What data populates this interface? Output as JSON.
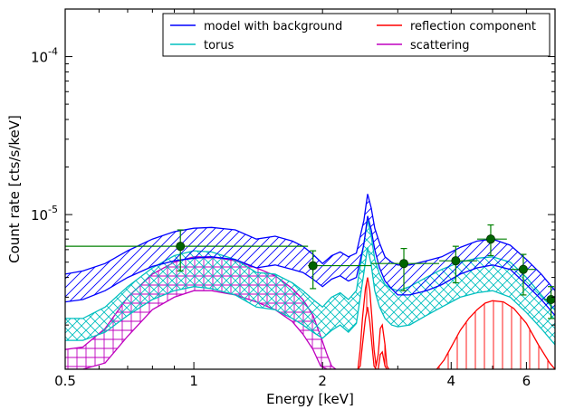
{
  "chart_data": {
    "type": "line",
    "xlabel": "Energy [keV]",
    "ylabel": "Count rate [cts/s/keV]",
    "xscale": "log",
    "yscale": "log",
    "xlim": [
      0.5,
      7.0
    ],
    "ylim": [
      1.05e-06,
      0.0002
    ],
    "x_ticks": [
      {
        "value": 0.5,
        "label": "0.5"
      },
      {
        "value": 1,
        "label": "1"
      },
      {
        "value": 2,
        "label": "2"
      },
      {
        "value": 4,
        "label": "4"
      },
      {
        "value": 6,
        "label": "6"
      }
    ],
    "y_ticks": [
      {
        "value": 1e-05,
        "base": "10",
        "exp": "-5"
      },
      {
        "value": 0.0001,
        "base": "10",
        "exp": "-4"
      }
    ],
    "legend": {
      "placement": "top-right",
      "entries": [
        {
          "label": "model with background",
          "color": "#0000ff"
        },
        {
          "label": "reflection component",
          "color": "#ff0000"
        },
        {
          "label": "torus",
          "color": "#00bfbf"
        },
        {
          "label": "scattering",
          "color": "#bf00bf"
        }
      ]
    },
    "series": [
      {
        "name": "model with background",
        "color": "#0000ff",
        "hatch": "diagonal",
        "x": [
          0.5,
          0.55,
          0.62,
          0.7,
          0.8,
          0.9,
          1.0,
          1.1,
          1.25,
          1.4,
          1.55,
          1.7,
          1.8,
          1.9,
          2.0,
          2.1,
          2.2,
          2.3,
          2.4,
          2.5,
          2.55,
          2.6,
          2.65,
          2.72,
          2.8,
          2.9,
          3.0,
          3.2,
          3.5,
          3.8,
          4.2,
          4.6,
          5.0,
          5.5,
          6.0,
          6.5,
          7.0
        ],
        "upper": [
          4.2e-06,
          4.4e-06,
          4.9e-06,
          5.9e-06,
          7e-06,
          7.8e-06,
          8.2e-06,
          8.3e-06,
          8e-06,
          7e-06,
          7.3e-06,
          6.8e-06,
          6.3e-06,
          5.6e-06,
          4.9e-06,
          5.5e-06,
          5.8e-06,
          5.4e-06,
          5.7e-06,
          9.2e-06,
          1.35e-05,
          1.1e-05,
          8.2e-06,
          6.6e-06,
          5.4e-06,
          5e-06,
          4.8e-06,
          4.8e-06,
          5.1e-06,
          5.4e-06,
          6.2e-06,
          6.8e-06,
          7e-06,
          6.4e-06,
          5.2e-06,
          4.2e-06,
          3.3e-06
        ],
        "lower": [
          2.8e-06,
          2.9e-06,
          3.3e-06,
          4e-06,
          4.7e-06,
          5.1e-06,
          5.3e-06,
          5.4e-06,
          5.2e-06,
          4.6e-06,
          4.8e-06,
          4.5e-06,
          4.3e-06,
          3.9e-06,
          3.5e-06,
          3.9e-06,
          4.1e-06,
          3.8e-06,
          4e-06,
          6.5e-06,
          9.8e-06,
          8e-06,
          6e-06,
          4.6e-06,
          3.8e-06,
          3.4e-06,
          3.1e-06,
          3.1e-06,
          3.3e-06,
          3.6e-06,
          4.2e-06,
          4.6e-06,
          4.8e-06,
          4.5e-06,
          3.6e-06,
          2.9e-06,
          2.3e-06
        ]
      },
      {
        "name": "torus",
        "color": "#00bfbf",
        "hatch": "cross",
        "x": [
          0.5,
          0.55,
          0.62,
          0.7,
          0.8,
          0.9,
          1.0,
          1.1,
          1.25,
          1.4,
          1.55,
          1.7,
          1.8,
          1.9,
          2.0,
          2.1,
          2.2,
          2.3,
          2.4,
          2.5,
          2.55,
          2.6,
          2.65,
          2.72,
          2.8,
          2.9,
          3.0,
          3.2,
          3.5,
          3.8,
          4.2,
          4.6,
          5.0,
          5.5,
          6.0,
          6.5,
          7.0
        ],
        "upper": [
          2.2e-06,
          2.2e-06,
          2.6e-06,
          3.5e-06,
          4.6e-06,
          5.5e-06,
          5.9e-06,
          5.8e-06,
          5.2e-06,
          4.3e-06,
          4.2e-06,
          3.7e-06,
          3.3e-06,
          2.9e-06,
          2.6e-06,
          3e-06,
          3.2e-06,
          2.9e-06,
          3.3e-06,
          6.6e-06,
          9.2e-06,
          7.3e-06,
          5.2e-06,
          4.2e-06,
          3.6e-06,
          3.4e-06,
          3.3e-06,
          3.5e-06,
          4e-06,
          4.5e-06,
          5e-06,
          5.3e-06,
          5.4e-06,
          5e-06,
          4e-06,
          3.1e-06,
          2.5e-06
        ],
        "lower": [
          1.6e-06,
          1.6e-06,
          1.8e-06,
          2.3e-06,
          2.9e-06,
          3.3e-06,
          3.5e-06,
          3.4e-06,
          3.1e-06,
          2.6e-06,
          2.5e-06,
          2.2e-06,
          2e-06,
          1.8e-06,
          1.65e-06,
          1.85e-06,
          2e-06,
          1.8e-06,
          2.05e-06,
          4.3e-06,
          6.2e-06,
          4.8e-06,
          3.3e-06,
          2.6e-06,
          2.2e-06,
          2e-06,
          1.95e-06,
          2e-06,
          2.3e-06,
          2.6e-06,
          3e-06,
          3.2e-06,
          3.3e-06,
          3e-06,
          2.4e-06,
          1.9e-06,
          1.5e-06
        ]
      },
      {
        "name": "scattering",
        "color": "#bf00bf",
        "hatch": "grid",
        "x": [
          0.5,
          0.55,
          0.62,
          0.7,
          0.8,
          0.9,
          1.0,
          1.1,
          1.25,
          1.4,
          1.55,
          1.7,
          1.8,
          1.9,
          1.98,
          2.05,
          2.1,
          2.15
        ],
        "upper": [
          1.4e-06,
          1.45e-06,
          1.9e-06,
          3e-06,
          4.2e-06,
          5e-06,
          5.4e-06,
          5.4e-06,
          5.1e-06,
          4.6e-06,
          4.1e-06,
          3.4e-06,
          2.9e-06,
          2.3e-06,
          1.7e-06,
          1.3e-06,
          1.1e-06,
          1e-06
        ],
        "lower": [
          1e-06,
          1e-06,
          1.15e-06,
          1.7e-06,
          2.5e-06,
          3e-06,
          3.3e-06,
          3.3e-06,
          3.1e-06,
          2.8e-06,
          2.5e-06,
          2.1e-06,
          1.75e-06,
          1.4e-06,
          1.1e-06,
          1e-06,
          1e-06,
          1e-06
        ]
      },
      {
        "name": "reflection component",
        "color": "#ff0000",
        "hatch": "vertical",
        "x": [
          2.42,
          2.45,
          2.48,
          2.52,
          2.55,
          2.58,
          2.61,
          2.64,
          2.67,
          2.7,
          2.73,
          2.76,
          2.8,
          2.83,
          2.86
        ],
        "upper": [
          1e-06,
          1.4e-06,
          2.2e-06,
          3.4e-06,
          4e-06,
          3.3e-06,
          2.2e-06,
          1.4e-06,
          1.1e-06,
          1.3e-06,
          1.9e-06,
          2e-06,
          1.5e-06,
          1.1e-06,
          1e-06
        ],
        "lower": [
          1e-06,
          1.1e-06,
          1.5e-06,
          2.2e-06,
          2.6e-06,
          2.1e-06,
          1.5e-06,
          1.1e-06,
          1e-06,
          1.05e-06,
          1.3e-06,
          1.35e-06,
          1.1e-06,
          1e-06,
          1e-06
        ],
        "x2": [
          3.7,
          3.85,
          4.0,
          4.2,
          4.4,
          4.6,
          4.8,
          5.0,
          5.3,
          5.6,
          6.0,
          6.4,
          6.8,
          7.0
        ],
        "upper2": [
          1e-06,
          1.2e-06,
          1.45e-06,
          1.85e-06,
          2.2e-06,
          2.5e-06,
          2.75e-06,
          2.85e-06,
          2.8e-06,
          2.55e-06,
          2.05e-06,
          1.5e-06,
          1.15e-06,
          1e-06
        ]
      }
    ],
    "data_points": {
      "color": "#006400",
      "error_color": "#008000",
      "points": [
        {
          "x": 0.93,
          "y": 6.3e-06,
          "xerr": [
            0.5,
            1.85
          ],
          "yerr": [
            4.4e-06,
            8e-06
          ]
        },
        {
          "x": 1.9,
          "y": 4.75e-06,
          "xerr": [
            1.85,
            2.6
          ],
          "yerr": [
            3.4e-06,
            5.9e-06
          ]
        },
        {
          "x": 3.1,
          "y": 4.9e-06,
          "xerr": [
            2.6,
            3.75
          ],
          "yerr": [
            3.3e-06,
            6.1e-06
          ]
        },
        {
          "x": 4.1,
          "y": 5.1e-06,
          "xerr": [
            3.75,
            4.6
          ],
          "yerr": [
            3.7e-06,
            6.3e-06
          ]
        },
        {
          "x": 4.95,
          "y": 7e-06,
          "xerr": [
            4.6,
            5.4
          ],
          "yerr": [
            5.5e-06,
            8.6e-06
          ]
        },
        {
          "x": 5.9,
          "y": 4.5e-06,
          "xerr": [
            5.5,
            6.3
          ],
          "yerr": [
            3.1e-06,
            5.6e-06
          ]
        },
        {
          "x": 6.85,
          "y": 2.9e-06,
          "xerr": [
            6.6,
            7.0
          ],
          "yerr": [
            2.2e-06,
            3.5e-06
          ]
        }
      ]
    }
  }
}
